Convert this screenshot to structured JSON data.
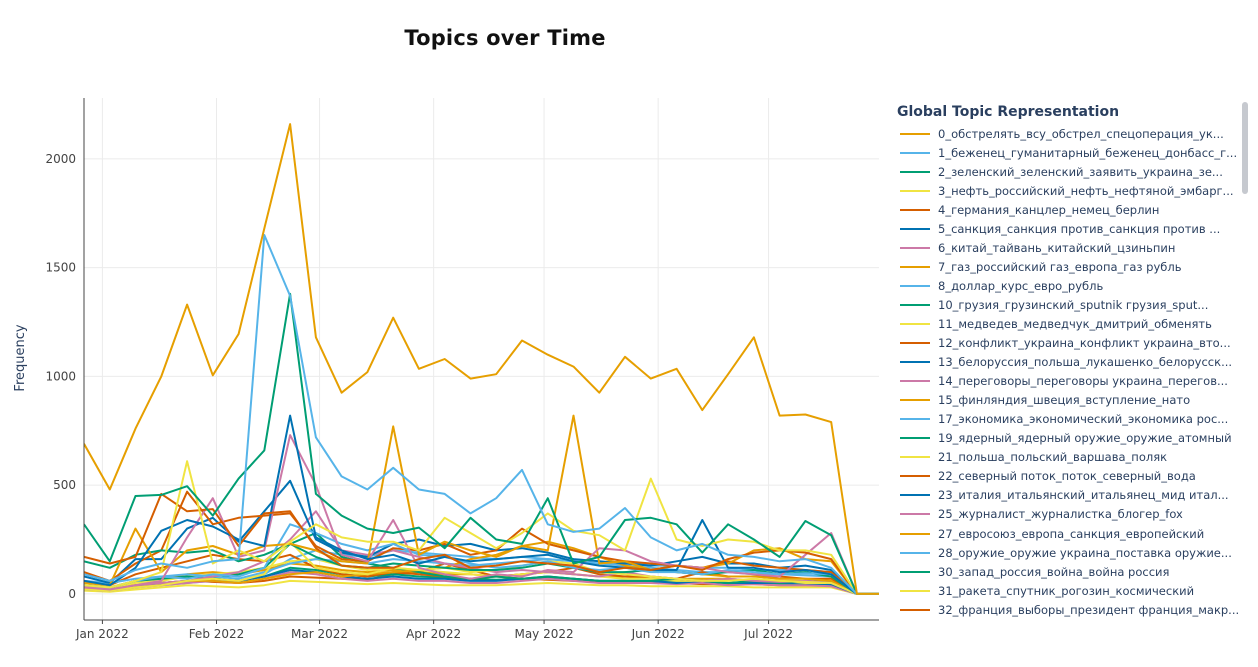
{
  "chart_data": {
    "type": "line",
    "title": "Topics over Time",
    "xlabel": "",
    "ylabel": "Frequency",
    "ylim": [
      -120,
      2280
    ],
    "xlim": [
      "2021-12-27",
      "2022-07-31"
    ],
    "yticks": [
      0,
      500,
      1000,
      1500,
      2000
    ],
    "xticks": [
      {
        "date": "2022-01-01",
        "label": "Jan 2022"
      },
      {
        "date": "2022-02-01",
        "label": "Feb 2022"
      },
      {
        "date": "2022-03-01",
        "label": "Mar 2022"
      },
      {
        "date": "2022-04-01",
        "label": "Apr 2022"
      },
      {
        "date": "2022-05-01",
        "label": "May 2022"
      },
      {
        "date": "2022-06-01",
        "label": "Jun 2022"
      },
      {
        "date": "2022-07-01",
        "label": "Jul 2022"
      }
    ],
    "grid": true,
    "legend_title": "Global Topic Representation",
    "legend_position": "right",
    "x": [
      "2021-12-27",
      "2022-01-03",
      "2022-01-10",
      "2022-01-17",
      "2022-01-24",
      "2022-01-31",
      "2022-02-07",
      "2022-02-14",
      "2022-02-21",
      "2022-02-28",
      "2022-03-07",
      "2022-03-14",
      "2022-03-21",
      "2022-03-28",
      "2022-04-04",
      "2022-04-11",
      "2022-04-18",
      "2022-04-25",
      "2022-05-02",
      "2022-05-09",
      "2022-05-16",
      "2022-05-23",
      "2022-05-30",
      "2022-06-06",
      "2022-06-13",
      "2022-06-20",
      "2022-06-27",
      "2022-07-04",
      "2022-07-11",
      "2022-07-18",
      "2022-07-25",
      "2022-07-31"
    ],
    "series": [
      {
        "name": "0_обстрелять_всу_обстрел_спецоперация_ук...",
        "color": "#E69F00",
        "values": [
          690,
          480,
          760,
          1000,
          1330,
          1005,
          1195,
          1680,
          2160,
          1180,
          925,
          1020,
          1270,
          1035,
          1080,
          990,
          1010,
          1165,
          1100,
          1045,
          925,
          1090,
          990,
          1035,
          845,
          1010,
          1180,
          820,
          825,
          790,
          0,
          0
        ]
      },
      {
        "name": "1_беженец_гуманитарный_беженец_донбасс_г...",
        "color": "#56B4E9",
        "values": [
          90,
          60,
          110,
          140,
          120,
          150,
          160,
          1650,
          1370,
          720,
          540,
          480,
          580,
          480,
          460,
          370,
          440,
          570,
          320,
          285,
          300,
          395,
          260,
          200,
          230,
          180,
          170,
          150,
          160,
          120,
          0,
          0
        ]
      },
      {
        "name": "2_зеленский_зеленский_заявить_украина_зе...",
        "color": "#009E73",
        "values": [
          320,
          150,
          450,
          455,
          495,
          360,
          530,
          660,
          1380,
          460,
          360,
          300,
          280,
          305,
          210,
          350,
          250,
          230,
          440,
          140,
          170,
          340,
          350,
          320,
          190,
          320,
          250,
          170,
          335,
          270,
          0,
          0
        ]
      },
      {
        "name": "3_нефть_российский_нефть_нефтяной_эмбарг...",
        "color": "#F0E442",
        "values": [
          40,
          30,
          60,
          100,
          610,
          140,
          200,
          150,
          240,
          320,
          260,
          240,
          240,
          200,
          350,
          280,
          210,
          280,
          370,
          290,
          270,
          200,
          530,
          250,
          220,
          250,
          240,
          200,
          200,
          180,
          0,
          0
        ]
      },
      {
        "name": "4_германия_канцлер_немец_берлин",
        "color": "#D55E00",
        "values": [
          170,
          140,
          170,
          460,
          380,
          390,
          220,
          370,
          380,
          210,
          130,
          120,
          120,
          160,
          180,
          120,
          130,
          150,
          140,
          130,
          100,
          120,
          110,
          130,
          110,
          160,
          190,
          200,
          190,
          160,
          0,
          0
        ]
      },
      {
        "name": "5_санкция_санкция против_санкция против ...",
        "color": "#0072B2",
        "values": [
          60,
          40,
          120,
          290,
          340,
          310,
          250,
          220,
          820,
          260,
          200,
          160,
          180,
          140,
          170,
          150,
          160,
          170,
          180,
          150,
          130,
          120,
          110,
          110,
          340,
          120,
          120,
          100,
          110,
          90,
          0,
          0
        ]
      },
      {
        "name": "6_китай_тайвань_китайский_цзиньпин",
        "color": "#CC79A7",
        "values": [
          30,
          20,
          40,
          60,
          260,
          440,
          170,
          200,
          730,
          500,
          180,
          150,
          340,
          120,
          90,
          70,
          90,
          80,
          110,
          100,
          210,
          200,
          150,
          130,
          120,
          100,
          90,
          80,
          180,
          280,
          0,
          0
        ]
      },
      {
        "name": "7_газ_российский газ_европа_газ рубль",
        "color": "#E69F00",
        "values": [
          50,
          40,
          300,
          100,
          200,
          220,
          180,
          220,
          230,
          200,
          150,
          140,
          770,
          180,
          240,
          200,
          170,
          220,
          200,
          820,
          140,
          150,
          110,
          130,
          120,
          140,
          200,
          210,
          160,
          150,
          0,
          0
        ]
      },
      {
        "name": "8_доллар_курс_евро_рубль",
        "color": "#56B4E9",
        "values": [
          40,
          30,
          60,
          80,
          70,
          90,
          80,
          120,
          320,
          280,
          230,
          200,
          230,
          180,
          170,
          140,
          120,
          130,
          150,
          120,
          110,
          120,
          100,
          100,
          90,
          110,
          100,
          90,
          95,
          90,
          0,
          0
        ]
      },
      {
        "name": "10_грузия_грузинский_sputnik грузия_sput...",
        "color": "#009E73",
        "values": [
          150,
          120,
          180,
          200,
          190,
          200,
          150,
          180,
          230,
          170,
          130,
          120,
          140,
          130,
          120,
          110,
          110,
          120,
          140,
          120,
          100,
          100,
          110,
          100,
          90,
          100,
          110,
          90,
          100,
          80,
          0,
          0
        ]
      },
      {
        "name": "11_медведев_медведчук_дмитрий_обменять",
        "color": "#F0E442",
        "values": [
          20,
          15,
          30,
          40,
          60,
          70,
          60,
          90,
          240,
          120,
          100,
          90,
          120,
          110,
          120,
          100,
          110,
          130,
          150,
          140,
          100,
          90,
          80,
          70,
          60,
          60,
          70,
          60,
          55,
          50,
          0,
          0
        ]
      },
      {
        "name": "12_конфликт_украина_конфликт украина_вто...",
        "color": "#D55E00",
        "values": [
          100,
          60,
          140,
          200,
          470,
          320,
          350,
          360,
          370,
          220,
          160,
          150,
          210,
          200,
          230,
          180,
          200,
          300,
          230,
          200,
          170,
          150,
          140,
          130,
          120,
          150,
          130,
          120,
          110,
          100,
          0,
          0
        ]
      },
      {
        "name": "13_белоруссия_польша_лукашенко_белорусск...",
        "color": "#0072B2",
        "values": [
          80,
          50,
          160,
          160,
          300,
          350,
          240,
          380,
          520,
          250,
          190,
          170,
          230,
          250,
          220,
          230,
          200,
          210,
          190,
          160,
          150,
          140,
          130,
          150,
          170,
          140,
          140,
          120,
          130,
          110,
          0,
          0
        ]
      },
      {
        "name": "14_переговоры_переговоры украина_перегов...",
        "color": "#CC79A7",
        "values": [
          30,
          20,
          40,
          50,
          60,
          80,
          100,
          150,
          250,
          380,
          200,
          180,
          200,
          170,
          140,
          120,
          100,
          110,
          100,
          90,
          80,
          100,
          80,
          70,
          60,
          70,
          60,
          55,
          60,
          50,
          0,
          0
        ]
      },
      {
        "name": "15_финляндия_швеция_вступление_нато",
        "color": "#E69F00",
        "values": [
          20,
          20,
          40,
          50,
          60,
          60,
          50,
          70,
          90,
          100,
          80,
          90,
          100,
          110,
          120,
          160,
          180,
          220,
          240,
          210,
          170,
          130,
          110,
          100,
          90,
          80,
          80,
          70,
          70,
          60,
          0,
          0
        ]
      },
      {
        "name": "17_экономика_экономический_экономика рос...",
        "color": "#56B4E9",
        "values": [
          60,
          50,
          70,
          80,
          90,
          80,
          70,
          100,
          140,
          160,
          150,
          140,
          160,
          150,
          140,
          130,
          140,
          150,
          160,
          150,
          140,
          150,
          130,
          130,
          120,
          120,
          110,
          110,
          110,
          100,
          0,
          0
        ]
      },
      {
        "name": "19_ядерный_ядерный оружие_оружие_атомный",
        "color": "#009E73",
        "values": [
          40,
          30,
          60,
          70,
          80,
          70,
          90,
          120,
          230,
          280,
          170,
          140,
          120,
          100,
          80,
          70,
          80,
          70,
          80,
          70,
          60,
          60,
          60,
          70,
          60,
          50,
          60,
          50,
          60,
          50,
          0,
          0
        ]
      },
      {
        "name": "21_польша_польский_варшава_поляк",
        "color": "#F0E442",
        "values": [
          30,
          20,
          50,
          60,
          80,
          90,
          100,
          120,
          150,
          160,
          130,
          110,
          120,
          110,
          100,
          90,
          80,
          90,
          100,
          90,
          80,
          70,
          70,
          60,
          60,
          70,
          60,
          60,
          50,
          50,
          0,
          0
        ]
      },
      {
        "name": "22_северный поток_поток_северный_вода",
        "color": "#D55E00",
        "values": [
          60,
          40,
          90,
          120,
          150,
          180,
          160,
          150,
          180,
          120,
          90,
          80,
          100,
          90,
          80,
          70,
          80,
          90,
          100,
          120,
          90,
          80,
          80,
          70,
          100,
          80,
          80,
          80,
          70,
          70,
          0,
          0
        ]
      },
      {
        "name": "23_италия_итальянский_итальянец_мид итал...",
        "color": "#0072B2",
        "values": [
          30,
          20,
          40,
          50,
          60,
          70,
          60,
          80,
          110,
          100,
          80,
          70,
          80,
          70,
          70,
          60,
          60,
          70,
          80,
          70,
          60,
          60,
          60,
          50,
          60,
          50,
          50,
          50,
          50,
          45,
          0,
          0
        ]
      },
      {
        "name": "25_журналист_журналистка_блогер_fox",
        "color": "#CC79A7",
        "values": [
          20,
          15,
          30,
          40,
          50,
          60,
          50,
          70,
          100,
          90,
          70,
          60,
          70,
          60,
          60,
          50,
          50,
          60,
          70,
          60,
          50,
          50,
          50,
          45,
          50,
          40,
          45,
          40,
          40,
          35,
          0,
          0
        ]
      },
      {
        "name": "27_евросоюз_европа_санкция_европейский",
        "color": "#E69F00",
        "values": [
          40,
          30,
          60,
          70,
          90,
          100,
          90,
          110,
          140,
          130,
          110,
          100,
          110,
          100,
          90,
          90,
          80,
          90,
          100,
          90,
          80,
          80,
          70,
          70,
          70,
          70,
          60,
          60,
          60,
          55,
          0,
          0
        ]
      },
      {
        "name": "28_оружие_оружие украина_поставка оружие...",
        "color": "#56B4E9",
        "values": [
          20,
          15,
          30,
          40,
          50,
          60,
          60,
          90,
          160,
          200,
          180,
          170,
          200,
          190,
          180,
          170,
          160,
          170,
          160,
          150,
          140,
          130,
          120,
          110,
          100,
          100,
          90,
          90,
          85,
          80,
          0,
          0
        ]
      },
      {
        "name": "30_запад_россия_война_война россия",
        "color": "#009E73",
        "values": [
          25,
          20,
          35,
          45,
          55,
          65,
          60,
          80,
          120,
          110,
          90,
          80,
          90,
          80,
          75,
          70,
          65,
          70,
          75,
          70,
          60,
          60,
          55,
          55,
          50,
          50,
          50,
          45,
          45,
          40,
          0,
          0
        ]
      },
      {
        "name": "31_ракета_спутник_рогозин_космический",
        "color": "#F0E442",
        "values": [
          15,
          10,
          20,
          30,
          40,
          35,
          30,
          40,
          60,
          55,
          50,
          45,
          50,
          45,
          40,
          40,
          40,
          45,
          50,
          45,
          40,
          40,
          35,
          35,
          35,
          35,
          30,
          30,
          30,
          30,
          0,
          0
        ]
      },
      {
        "name": "32_франция_выборы_президент франция_макр...",
        "color": "#D55E00",
        "values": [
          30,
          20,
          40,
          50,
          60,
          55,
          50,
          60,
          80,
          75,
          70,
          65,
          90,
          100,
          140,
          110,
          80,
          70,
          65,
          60,
          55,
          55,
          50,
          50,
          45,
          45,
          45,
          40,
          40,
          40,
          0,
          0
        ]
      }
    ]
  }
}
